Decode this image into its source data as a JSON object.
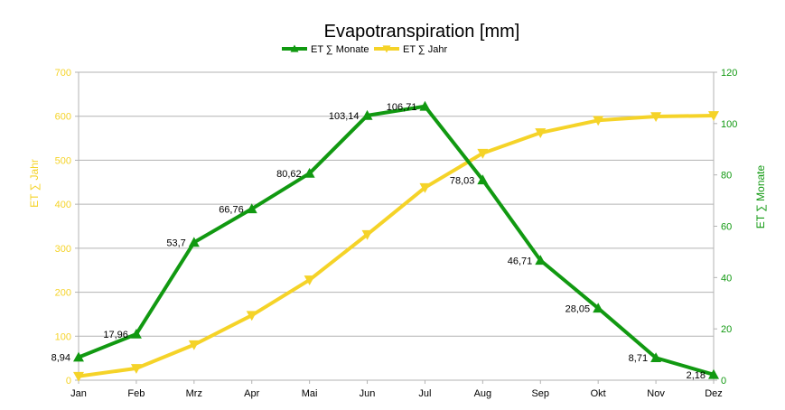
{
  "chart_data": {
    "type": "line",
    "title": "Evapotranspiration [mm]",
    "categories": [
      "Jan",
      "Feb",
      "Mrz",
      "Apr",
      "Mai",
      "Jun",
      "Jul",
      "Aug",
      "Sep",
      "Okt",
      "Nov",
      "Dez"
    ],
    "series": [
      {
        "name": "ET ∑ Monate",
        "axis": "right",
        "color": "#119911",
        "marker": "triangle-up",
        "values": [
          8.94,
          17.96,
          53.7,
          66.76,
          80.62,
          103.14,
          106.71,
          78.03,
          46.71,
          28.05,
          8.71,
          2.18
        ],
        "labels": [
          "8,94",
          "17,96",
          "53,7",
          "66,76",
          "80,62",
          "103,14",
          "106,71",
          "78,03",
          "46,71",
          "28,05",
          "8,71",
          "2,18"
        ]
      },
      {
        "name": "ET ∑ Jahr",
        "axis": "left",
        "color": "#f5d328",
        "marker": "triangle-down",
        "values": [
          8.94,
          26.9,
          80.6,
          147.36,
          227.98,
          331.12,
          437.83,
          515.86,
          562.57,
          590.62,
          599.33,
          601.51
        ]
      }
    ],
    "left_axis": {
      "label": "ET ∑ Jahr",
      "min": 0,
      "max": 700,
      "ticks": [
        0,
        100,
        200,
        300,
        400,
        500,
        600,
        700
      ],
      "color": "#f5d328"
    },
    "right_axis": {
      "label": "ET ∑ Monate",
      "min": 0,
      "max": 120,
      "ticks": [
        0,
        20,
        40,
        60,
        80,
        100,
        120
      ],
      "color": "#119911"
    },
    "grid": true,
    "legend_position": "top-center"
  }
}
